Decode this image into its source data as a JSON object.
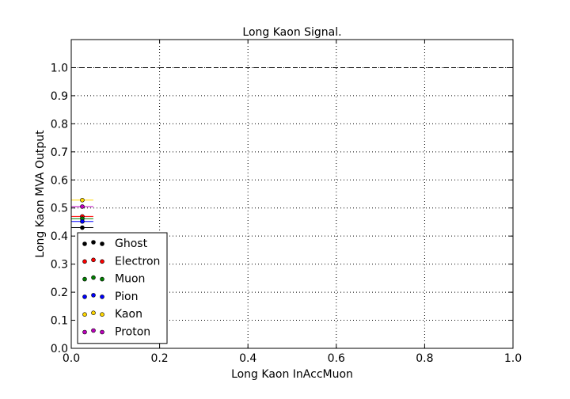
{
  "chart_data": {
    "type": "scatter",
    "title": "Long Kaon Signal.",
    "xlabel": "Long Kaon InAccMuon",
    "ylabel": "Long Kaon MVA Output",
    "xlim": [
      0.0,
      1.0
    ],
    "ylim": [
      0.0,
      1.1
    ],
    "xticks": [
      "0.0",
      "0.2",
      "0.4",
      "0.6",
      "0.8",
      "1.0"
    ],
    "yticks": [
      "0.0",
      "0.1",
      "0.2",
      "0.3",
      "0.4",
      "0.5",
      "0.6",
      "0.7",
      "0.8",
      "0.9",
      "1.0"
    ],
    "grid": true,
    "reference_line": {
      "y": 1.0,
      "style": "dashed"
    },
    "legend_position": "lower-left",
    "series": [
      {
        "name": "Ghost",
        "color": "#000000",
        "x": 0.025,
        "y": 0.43,
        "xerr": 0.025
      },
      {
        "name": "Electron",
        "color": "#ff0000",
        "x": 0.025,
        "y": 0.47,
        "xerr": 0.025
      },
      {
        "name": "Muon",
        "color": "#008000",
        "x": 0.025,
        "y": 0.462,
        "xerr": 0.025
      },
      {
        "name": "Pion",
        "color": "#0000ff",
        "x": 0.025,
        "y": 0.452,
        "xerr": 0.025
      },
      {
        "name": "Kaon",
        "color": "#ffd700",
        "x": 0.025,
        "y": 0.528,
        "xerr": 0.025
      },
      {
        "name": "Proton",
        "color": "#bf00bf",
        "x": 0.025,
        "y": 0.505,
        "xerr": 0.025
      }
    ]
  }
}
